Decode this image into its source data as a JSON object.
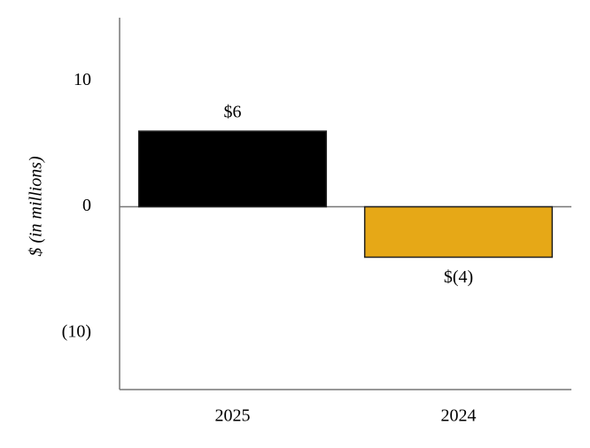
{
  "chart_data": {
    "type": "bar",
    "ylabel": "$ (in millions)",
    "categories": [
      "2025",
      "2024"
    ],
    "values": [
      6,
      -4
    ],
    "value_labels": [
      "$6",
      "$(4)"
    ],
    "colors": [
      "#000000",
      "#e6a817"
    ],
    "ylim": [
      -14.5,
      15
    ],
    "yticks": [
      {
        "value": -10,
        "label": "(10)"
      },
      0,
      10
    ],
    "grid": false
  }
}
